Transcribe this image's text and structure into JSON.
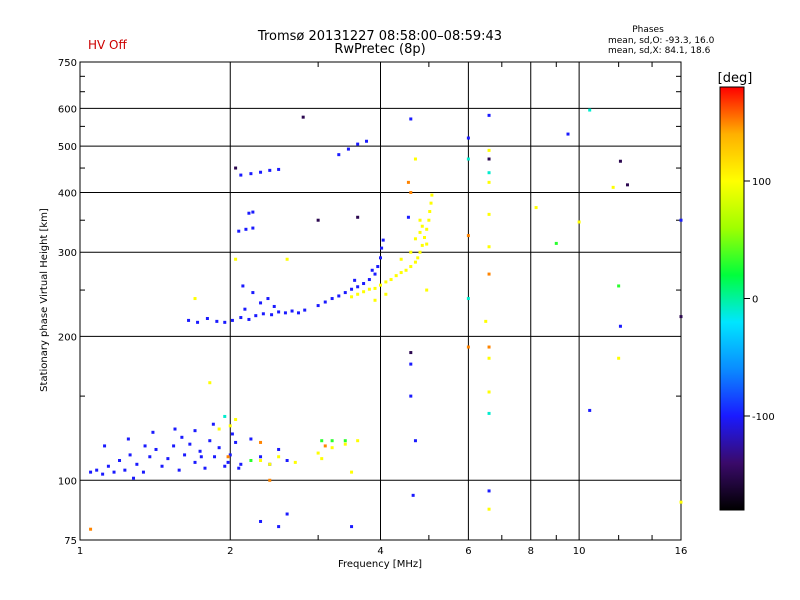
{
  "status_label": "HV Off",
  "status_color": "#cc0000",
  "chart_data": {
    "type": "scatter",
    "title": "Tromsø 20131227 08:58:00–08:59:43",
    "subtitle": "RwPretec (8p)",
    "stats": {
      "heading": "Phases",
      "o_line": "mean, sd,O:  -93.3, 16.0",
      "x_line": "mean, sd,X:  84.1, 18.6"
    },
    "xlabel": "Frequency [MHz]",
    "ylabel": "Stationary phase Virtual Height [km]",
    "x_scale": "log",
    "y_scale": "log",
    "xlim": [
      1,
      16
    ],
    "ylim": [
      75,
      750
    ],
    "grid": true,
    "x_ticks": [
      1,
      2,
      4,
      6,
      8,
      10,
      16
    ],
    "x_minor_ticks": [
      3,
      5,
      7,
      9,
      12,
      14
    ],
    "y_ticks": [
      75,
      100,
      200,
      300,
      400,
      500,
      600,
      750
    ],
    "y_minor_ticks": [
      150,
      250,
      350,
      450,
      550,
      650,
      700
    ],
    "colorbar": {
      "label": "[deg]",
      "min": -180,
      "max": 180,
      "ticks": [
        100,
        0,
        -100
      ],
      "stops": [
        "#000000",
        "#3a0a6a",
        "#1a1aff",
        "#0a8cff",
        "#00e6ff",
        "#00ff3c",
        "#a0ff00",
        "#ffff00",
        "#ffb000",
        "#ff0000"
      ]
    },
    "series": [
      {
        "points": [
          [
            1.05,
            104,
            -100
          ],
          [
            1.08,
            105,
            -100
          ],
          [
            1.11,
            103,
            -100
          ],
          [
            1.14,
            107,
            -100
          ],
          [
            1.17,
            104,
            -100
          ],
          [
            1.2,
            110,
            -100
          ],
          [
            1.23,
            105,
            -100
          ],
          [
            1.26,
            113,
            -100
          ],
          [
            1.3,
            108,
            -100
          ],
          [
            1.34,
            104,
            -100
          ],
          [
            1.38,
            112,
            -100
          ],
          [
            1.42,
            116,
            -100
          ],
          [
            1.46,
            107,
            -100
          ],
          [
            1.5,
            111,
            -100
          ],
          [
            1.54,
            118,
            -100
          ],
          [
            1.58,
            105,
            -100
          ],
          [
            1.62,
            113,
            -100
          ],
          [
            1.66,
            119,
            -100
          ],
          [
            1.7,
            109,
            -100
          ],
          [
            1.74,
            115,
            -100
          ],
          [
            1.78,
            106,
            -100
          ],
          [
            1.82,
            121,
            -100
          ],
          [
            1.86,
            112,
            -100
          ],
          [
            1.9,
            117,
            -100
          ],
          [
            1.95,
            107,
            -100
          ],
          [
            2.0,
            113,
            -100
          ],
          [
            2.05,
            120,
            -100
          ],
          [
            2.1,
            108,
            -100
          ],
          [
            1.12,
            118,
            -100
          ],
          [
            1.25,
            122,
            -100
          ],
          [
            1.4,
            126,
            -100
          ],
          [
            1.55,
            128,
            -100
          ],
          [
            1.7,
            127,
            -100
          ],
          [
            1.85,
            131,
            -100
          ],
          [
            2.02,
            125,
            -100
          ],
          [
            1.35,
            118,
            -100
          ],
          [
            1.6,
            123,
            -100
          ],
          [
            2.3,
            112,
            -100
          ],
          [
            2.4,
            108,
            -100
          ],
          [
            2.5,
            116,
            -100
          ],
          [
            2.6,
            110,
            -100
          ],
          [
            2.2,
            122,
            -100
          ],
          [
            1.75,
            112,
            -100
          ],
          [
            2.08,
            106,
            -100
          ],
          [
            1.28,
            101,
            -100
          ],
          [
            1.98,
            109,
            -100
          ],
          [
            1.65,
            216,
            -100
          ],
          [
            1.72,
            214,
            -100
          ],
          [
            1.8,
            218,
            -100
          ],
          [
            1.88,
            215,
            -100
          ],
          [
            1.95,
            214,
            -100
          ],
          [
            2.02,
            216,
            -100
          ],
          [
            2.1,
            219,
            -100
          ],
          [
            2.18,
            217,
            -100
          ],
          [
            2.25,
            221,
            -100
          ],
          [
            2.33,
            223,
            -100
          ],
          [
            2.42,
            222,
            -100
          ],
          [
            2.5,
            225,
            -100
          ],
          [
            2.58,
            224,
            -100
          ],
          [
            2.66,
            226,
            -100
          ],
          [
            2.74,
            224,
            -100
          ],
          [
            2.82,
            227,
            -100
          ],
          [
            2.14,
            228,
            -100
          ],
          [
            2.3,
            235,
            -100
          ],
          [
            2.22,
            247,
            -100
          ],
          [
            2.38,
            240,
            -100
          ],
          [
            2.45,
            231,
            -100
          ],
          [
            2.12,
            255,
            -100
          ],
          [
            3.0,
            232,
            -100
          ],
          [
            3.1,
            236,
            -100
          ],
          [
            3.2,
            240,
            -100
          ],
          [
            3.3,
            243,
            -100
          ],
          [
            3.4,
            247,
            -100
          ],
          [
            3.5,
            251,
            -100
          ],
          [
            3.6,
            254,
            -100
          ],
          [
            3.7,
            258,
            -100
          ],
          [
            3.8,
            263,
            -100
          ],
          [
            3.9,
            270,
            -100
          ],
          [
            3.95,
            280,
            -100
          ],
          [
            4.0,
            292,
            -100
          ],
          [
            4.02,
            306,
            -100
          ],
          [
            4.05,
            318,
            -100
          ],
          [
            3.85,
            275,
            -100
          ],
          [
            3.55,
            262,
            -100
          ],
          [
            2.08,
            332,
            -100
          ],
          [
            2.15,
            335,
            -100
          ],
          [
            2.22,
            337,
            -100
          ],
          [
            2.18,
            362,
            -100
          ],
          [
            2.22,
            364,
            -100
          ],
          [
            2.1,
            435,
            -100
          ],
          [
            2.2,
            438,
            -100
          ],
          [
            2.3,
            441,
            -100
          ],
          [
            2.4,
            445,
            -100
          ],
          [
            2.5,
            447,
            -100
          ],
          [
            3.3,
            480,
            -100
          ],
          [
            3.45,
            493,
            -100
          ],
          [
            3.6,
            505,
            -100
          ],
          [
            3.75,
            512,
            -100
          ],
          [
            4.6,
            150,
            -100
          ],
          [
            4.6,
            175,
            -100
          ],
          [
            4.7,
            121,
            -100
          ],
          [
            4.65,
            93,
            -100
          ],
          [
            6.6,
            95,
            -100
          ],
          [
            2.3,
            82,
            -100
          ],
          [
            2.5,
            80,
            -100
          ],
          [
            3.5,
            80,
            -100
          ],
          [
            10.5,
            140,
            -100
          ],
          [
            12.1,
            210,
            -100
          ],
          [
            9.5,
            530,
            -100
          ],
          [
            4.6,
            570,
            -100
          ],
          [
            6.0,
            520,
            -100
          ],
          [
            2.6,
            85,
            -100
          ],
          [
            6.6,
            580,
            -100
          ],
          [
            16.0,
            350,
            -100
          ],
          [
            4.55,
            355,
            -100
          ]
        ]
      },
      {
        "points": [
          [
            3.5,
            242,
            100
          ],
          [
            3.6,
            245,
            100
          ],
          [
            3.7,
            248,
            100
          ],
          [
            3.8,
            251,
            100
          ],
          [
            3.9,
            252,
            100
          ],
          [
            4.0,
            256,
            100
          ],
          [
            4.1,
            260,
            100
          ],
          [
            4.2,
            263,
            100
          ],
          [
            4.3,
            268,
            100
          ],
          [
            4.4,
            272,
            100
          ],
          [
            4.5,
            275,
            100
          ],
          [
            4.6,
            280,
            100
          ],
          [
            4.7,
            286,
            100
          ],
          [
            4.75,
            292,
            100
          ],
          [
            4.8,
            300,
            100
          ],
          [
            4.85,
            310,
            100
          ],
          [
            4.9,
            322,
            100
          ],
          [
            4.95,
            335,
            100
          ],
          [
            5.0,
            350,
            100
          ],
          [
            5.02,
            365,
            100
          ],
          [
            5.05,
            380,
            100
          ],
          [
            5.07,
            395,
            100
          ],
          [
            4.4,
            290,
            100
          ],
          [
            4.6,
            300,
            100
          ],
          [
            4.8,
            330,
            100
          ],
          [
            4.85,
            340,
            100
          ],
          [
            4.95,
            312,
            100
          ],
          [
            4.7,
            320,
            100
          ],
          [
            3.9,
            238,
            100
          ],
          [
            4.1,
            245,
            100
          ],
          [
            2.3,
            110,
            100
          ],
          [
            2.4,
            108,
            100
          ],
          [
            2.5,
            112,
            100
          ],
          [
            2.7,
            109,
            100
          ],
          [
            3.0,
            114,
            100
          ],
          [
            3.2,
            117,
            100
          ],
          [
            3.4,
            119,
            100
          ],
          [
            3.6,
            121,
            100
          ],
          [
            2.0,
            130,
            100
          ],
          [
            1.9,
            128,
            100
          ],
          [
            2.05,
            134,
            100
          ],
          [
            1.82,
            160,
            100
          ],
          [
            1.7,
            240,
            100
          ],
          [
            3.5,
            104,
            100
          ],
          [
            3.05,
            111,
            100
          ],
          [
            4.7,
            470,
            100
          ],
          [
            4.8,
            350,
            100
          ],
          [
            6.6,
            490,
            100
          ],
          [
            6.6,
            420,
            100
          ],
          [
            6.6,
            360,
            100
          ],
          [
            6.6,
            308,
            100
          ],
          [
            6.5,
            215,
            100
          ],
          [
            6.6,
            180,
            100
          ],
          [
            6.6,
            153,
            100
          ],
          [
            6.6,
            87,
            100
          ],
          [
            12.0,
            180,
            100
          ],
          [
            10.0,
            347,
            100
          ],
          [
            8.2,
            372,
            100
          ],
          [
            11.7,
            410,
            100
          ],
          [
            16.0,
            90,
            100
          ],
          [
            4.95,
            250,
            100
          ],
          [
            2.6,
            290,
            100
          ],
          [
            2.05,
            290,
            100
          ]
        ]
      },
      {
        "points": [
          [
            3.05,
            121,
            30
          ],
          [
            3.4,
            121,
            30
          ],
          [
            9.0,
            313,
            30
          ],
          [
            12.0,
            255,
            30
          ],
          [
            2.2,
            110,
            30
          ],
          [
            3.2,
            121,
            30
          ]
        ]
      },
      {
        "points": [
          [
            1.05,
            79,
            150
          ],
          [
            2.3,
            120,
            150
          ],
          [
            2.4,
            100,
            150
          ],
          [
            6.0,
            325,
            150
          ],
          [
            6.6,
            190,
            150
          ],
          [
            6.0,
            190,
            150
          ],
          [
            4.6,
            400,
            150
          ],
          [
            3.1,
            118,
            150
          ],
          [
            6.6,
            270,
            150
          ],
          [
            4.55,
            420,
            150
          ],
          [
            1.98,
            112,
            150
          ]
        ]
      },
      {
        "points": [
          [
            2.8,
            575,
            -150
          ],
          [
            3.0,
            350,
            -150
          ],
          [
            4.6,
            185,
            -150
          ],
          [
            12.5,
            415,
            -150
          ],
          [
            6.6,
            470,
            -150
          ],
          [
            16.0,
            220,
            -150
          ],
          [
            12.1,
            465,
            -150
          ],
          [
            2.05,
            450,
            -150
          ],
          [
            3.6,
            355,
            -150
          ]
        ]
      },
      {
        "points": [
          [
            6.0,
            470,
            -10
          ],
          [
            6.0,
            240,
            -10
          ],
          [
            6.6,
            440,
            -10
          ],
          [
            10.5,
            595,
            -10
          ],
          [
            6.6,
            138,
            -10
          ],
          [
            1.95,
            136,
            -10
          ]
        ]
      }
    ]
  }
}
